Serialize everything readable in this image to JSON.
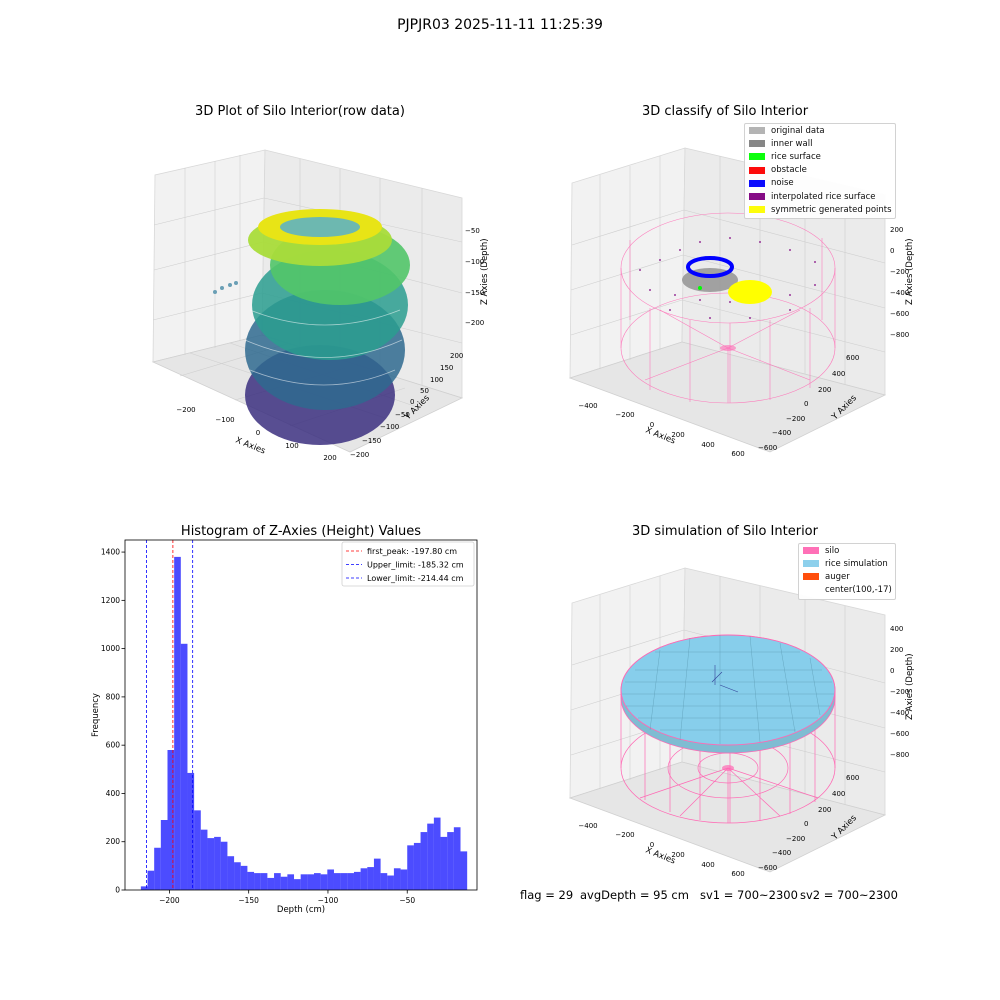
{
  "suptitle": "PJPJR03 2025-11-11 11:25:39",
  "panel_raw": {
    "title": "3D Plot of Silo Interior(row data)",
    "xlabel": "X Axies",
    "ylabel": "Y Axies",
    "zlabel": "Z Axies (Depth)",
    "xticks": [
      "−200",
      "−100",
      "0",
      "100",
      "200"
    ],
    "yticks": [
      "200",
      "150",
      "100",
      "50",
      "0",
      "−50",
      "−100",
      "−150",
      "−200"
    ],
    "zticks": [
      "−50",
      "−100",
      "−150",
      "−200"
    ]
  },
  "panel_classify": {
    "title": "3D classify of Silo Interior",
    "xlabel": "X Axies",
    "ylabel": "Y Axies",
    "zlabel": "Z Axies (Depth)",
    "xticks": [
      "−400",
      "−200",
      "0",
      "200",
      "400",
      "600"
    ],
    "yticks": [
      "600",
      "400",
      "200",
      "0",
      "−200",
      "−400",
      "−600"
    ],
    "zticks": [
      "200",
      "0",
      "−200",
      "−400",
      "−600",
      "−800"
    ],
    "legend": [
      {
        "label": "original data",
        "color": "#b0b0b0"
      },
      {
        "label": "inner wall",
        "color": "#808080"
      },
      {
        "label": "rice surface",
        "color": "#00ff00"
      },
      {
        "label": "obstacle",
        "color": "#ff0000"
      },
      {
        "label": "noise",
        "color": "#0000ff"
      },
      {
        "label": "interpolated rice surface",
        "color": "#800080"
      },
      {
        "label": "symmetric generated points",
        "color": "#ffff00"
      }
    ]
  },
  "panel_sim": {
    "title": "3D simulation of Silo Interior",
    "xlabel": "X Axies",
    "ylabel": "Y Axies",
    "zlabel": "Z Axies (Depth)",
    "xticks": [
      "−400",
      "−200",
      "0",
      "200",
      "400",
      "600"
    ],
    "yticks": [
      "600",
      "400",
      "200",
      "0",
      "−200",
      "−400",
      "−600"
    ],
    "zticks": [
      "400",
      "200",
      "0",
      "−200",
      "−400",
      "−600",
      "−800"
    ],
    "legend": [
      {
        "label": "silo",
        "color": "#ff69b4"
      },
      {
        "label": "rice simulation",
        "color": "#87ceeb"
      },
      {
        "label": "auger",
        "color": "#ff4500"
      },
      {
        "label": "center(100,-17)",
        "color": ""
      }
    ]
  },
  "status": {
    "flag": "flag = 29",
    "avg": "avgDepth = 95 cm",
    "sv1": "sv1 = 700~2300",
    "sv2": "sv2 = 700~2300"
  },
  "chart_data": [
    {
      "type": "histogram",
      "title": "Histogram of Z-Axies (Height) Values",
      "xlabel": "Depth (cm)",
      "ylabel": "Frequency",
      "xlim": [
        -228,
        -6
      ],
      "ylim": [
        0,
        1450
      ],
      "xticks": [
        -200,
        -150,
        -100,
        -50
      ],
      "xtick_labels": [
        "−200",
        "−150",
        "−100",
        "−50"
      ],
      "yticks": [
        0,
        200,
        400,
        600,
        800,
        1000,
        1200,
        1400
      ],
      "bin_start": -218,
      "bin_width": 4.2,
      "color": "#0000ff",
      "values": [
        15,
        80,
        175,
        290,
        580,
        1380,
        1020,
        485,
        330,
        250,
        215,
        220,
        200,
        140,
        115,
        100,
        75,
        70,
        70,
        50,
        70,
        55,
        65,
        45,
        65,
        65,
        70,
        65,
        85,
        70,
        70,
        70,
        75,
        90,
        95,
        130,
        70,
        60,
        90,
        85,
        185,
        195,
        240,
        275,
        300,
        220,
        240,
        260,
        160
      ],
      "lines": [
        {
          "label": "first_peak: -197.80 cm",
          "x": -197.8,
          "color": "#ff0000"
        },
        {
          "label": "Upper_limit: -185.32 cm",
          "x": -185.32,
          "color": "#0000ff"
        },
        {
          "label": "Lower_limit: -214.44 cm",
          "x": -214.44,
          "color": "#0000ff"
        }
      ],
      "legend_position": "upper right"
    }
  ]
}
